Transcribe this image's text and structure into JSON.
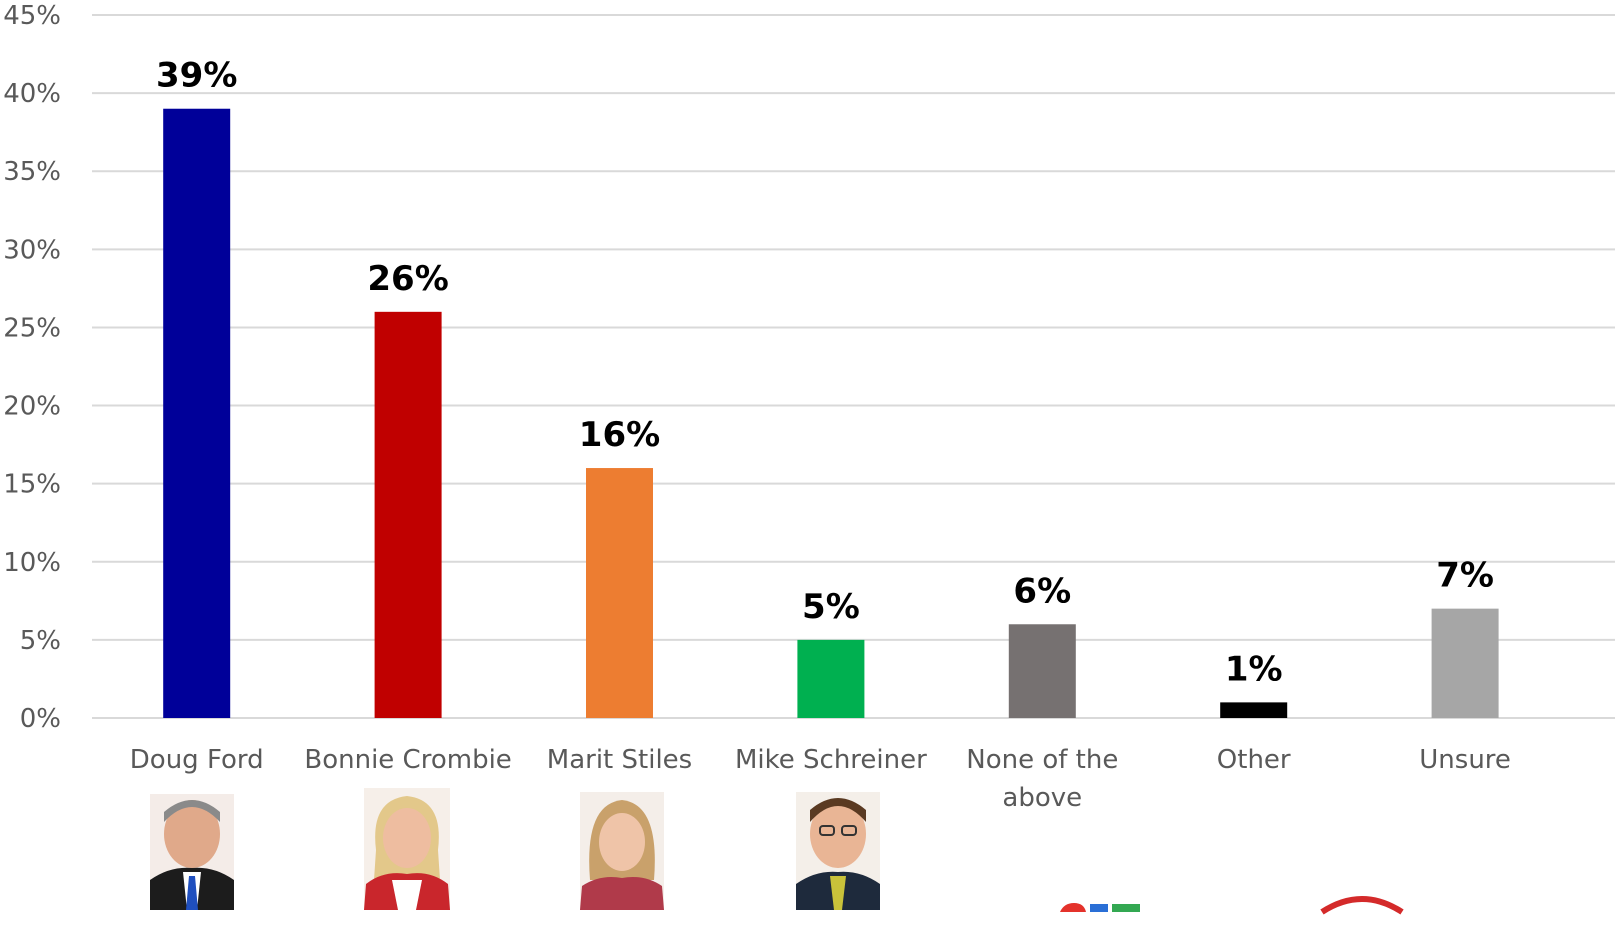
{
  "chart_data": {
    "type": "bar",
    "categories": [
      "Doug Ford",
      "Bonnie Crombie",
      "Marit Stiles",
      "Mike Schreiner",
      "None of the above",
      "Other",
      "Unsure"
    ],
    "values": [
      39,
      26,
      16,
      5,
      6,
      1,
      7
    ],
    "data_labels": [
      "39%",
      "26%",
      "16%",
      "5%",
      "6%",
      "1%",
      "7%"
    ],
    "colors": [
      "#000099",
      "#c00000",
      "#ed7d31",
      "#00b050",
      "#767171",
      "#000000",
      "#a6a6a6"
    ],
    "ylim": [
      0,
      45
    ],
    "yticks": [
      0,
      5,
      10,
      15,
      20,
      25,
      30,
      35,
      40,
      45
    ],
    "ytick_labels": [
      "0%",
      "5%",
      "10%",
      "15%",
      "20%",
      "25%",
      "30%",
      "35%",
      "40%",
      "45%"
    ],
    "grid": true,
    "title": "",
    "xlabel": "",
    "ylabel": "",
    "images": [
      "portrait-doug-ford",
      "portrait-bonnie-crombie",
      "portrait-marit-stiles",
      "portrait-mike-schreiner"
    ]
  }
}
